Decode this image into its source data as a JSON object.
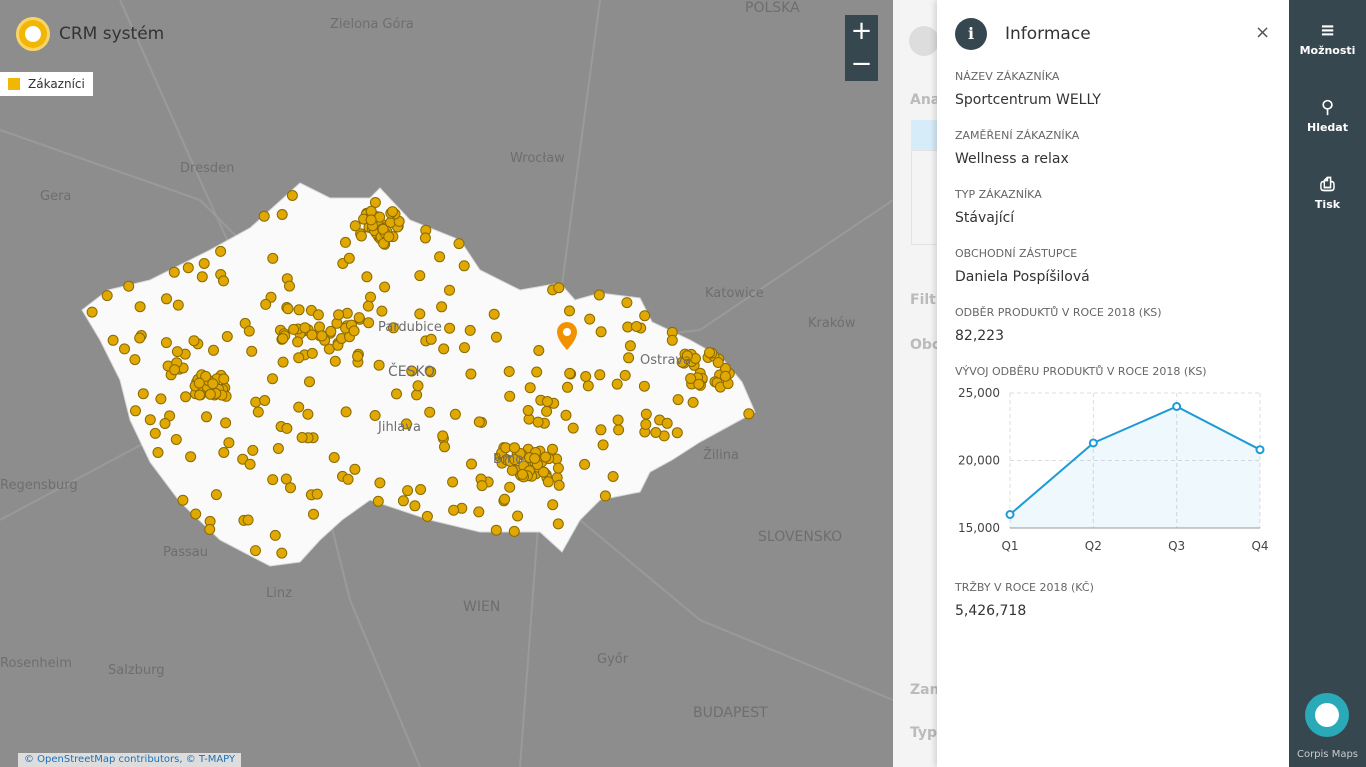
{
  "app": {
    "title": "CRM systém",
    "legend": "Zákazníci",
    "attribution": "© OpenStreetMap contributors, © T-MAPY"
  },
  "map": {
    "labels": [
      "Zielona Góra",
      "POLSKA",
      "Dresden",
      "Wrocław",
      "Gera",
      "Katowice",
      "Kraków",
      "Pardubice",
      "ČESKO",
      "Jihlava",
      "Brno",
      "Ostrava",
      "Žilina",
      "Regensburg",
      "Passau",
      "Linz",
      "WIEN",
      "SLOVENSKO",
      "Rosenheim",
      "Salzburg",
      "Győr",
      "BUDAPEST"
    ]
  },
  "background_panel": {
    "texts": [
      "Ana",
      "Filt",
      "Obc",
      "Zam",
      "Typ"
    ]
  },
  "info": {
    "title": "Informace",
    "fields": [
      {
        "label": "NÁZEV ZÁKAZNÍKA",
        "value": "Sportcentrum WELLY"
      },
      {
        "label": "ZAMĚŘENÍ ZÁKAZNÍKA",
        "value": "Wellness a relax"
      },
      {
        "label": "TYP ZÁKAZNÍKA",
        "value": "Stávající"
      },
      {
        "label": "OBCHODNÍ ZÁSTUPCE",
        "value": "Daniela Pospíšilová"
      },
      {
        "label": "ODBĚR PRODUKTŮ V ROCE 2018 (KS)",
        "value": "82,223"
      }
    ],
    "chart": {
      "type": "line",
      "title": "VÝVOJ ODBĚRU PRODUKTŮ V ROCE 2018 (KS)",
      "categories": [
        "Q1",
        "Q2",
        "Q3",
        "Q4"
      ],
      "values": [
        16000,
        21300,
        24000,
        20800
      ],
      "color": "#1e9ad6",
      "ylim": [
        15000,
        25000
      ],
      "yticks": [
        {
          "value": 15000,
          "label": "15,000"
        },
        {
          "value": 20000,
          "label": "20,000"
        },
        {
          "value": 25000,
          "label": "25,000"
        }
      ],
      "grid": true
    },
    "sales": {
      "label": "TRŽBY V ROCE 2018 (KČ)",
      "value": "5,426,718"
    }
  },
  "sidebar": {
    "items": [
      "Možnosti",
      "Hledat",
      "Tisk"
    ],
    "brand": "Corpis Maps"
  }
}
